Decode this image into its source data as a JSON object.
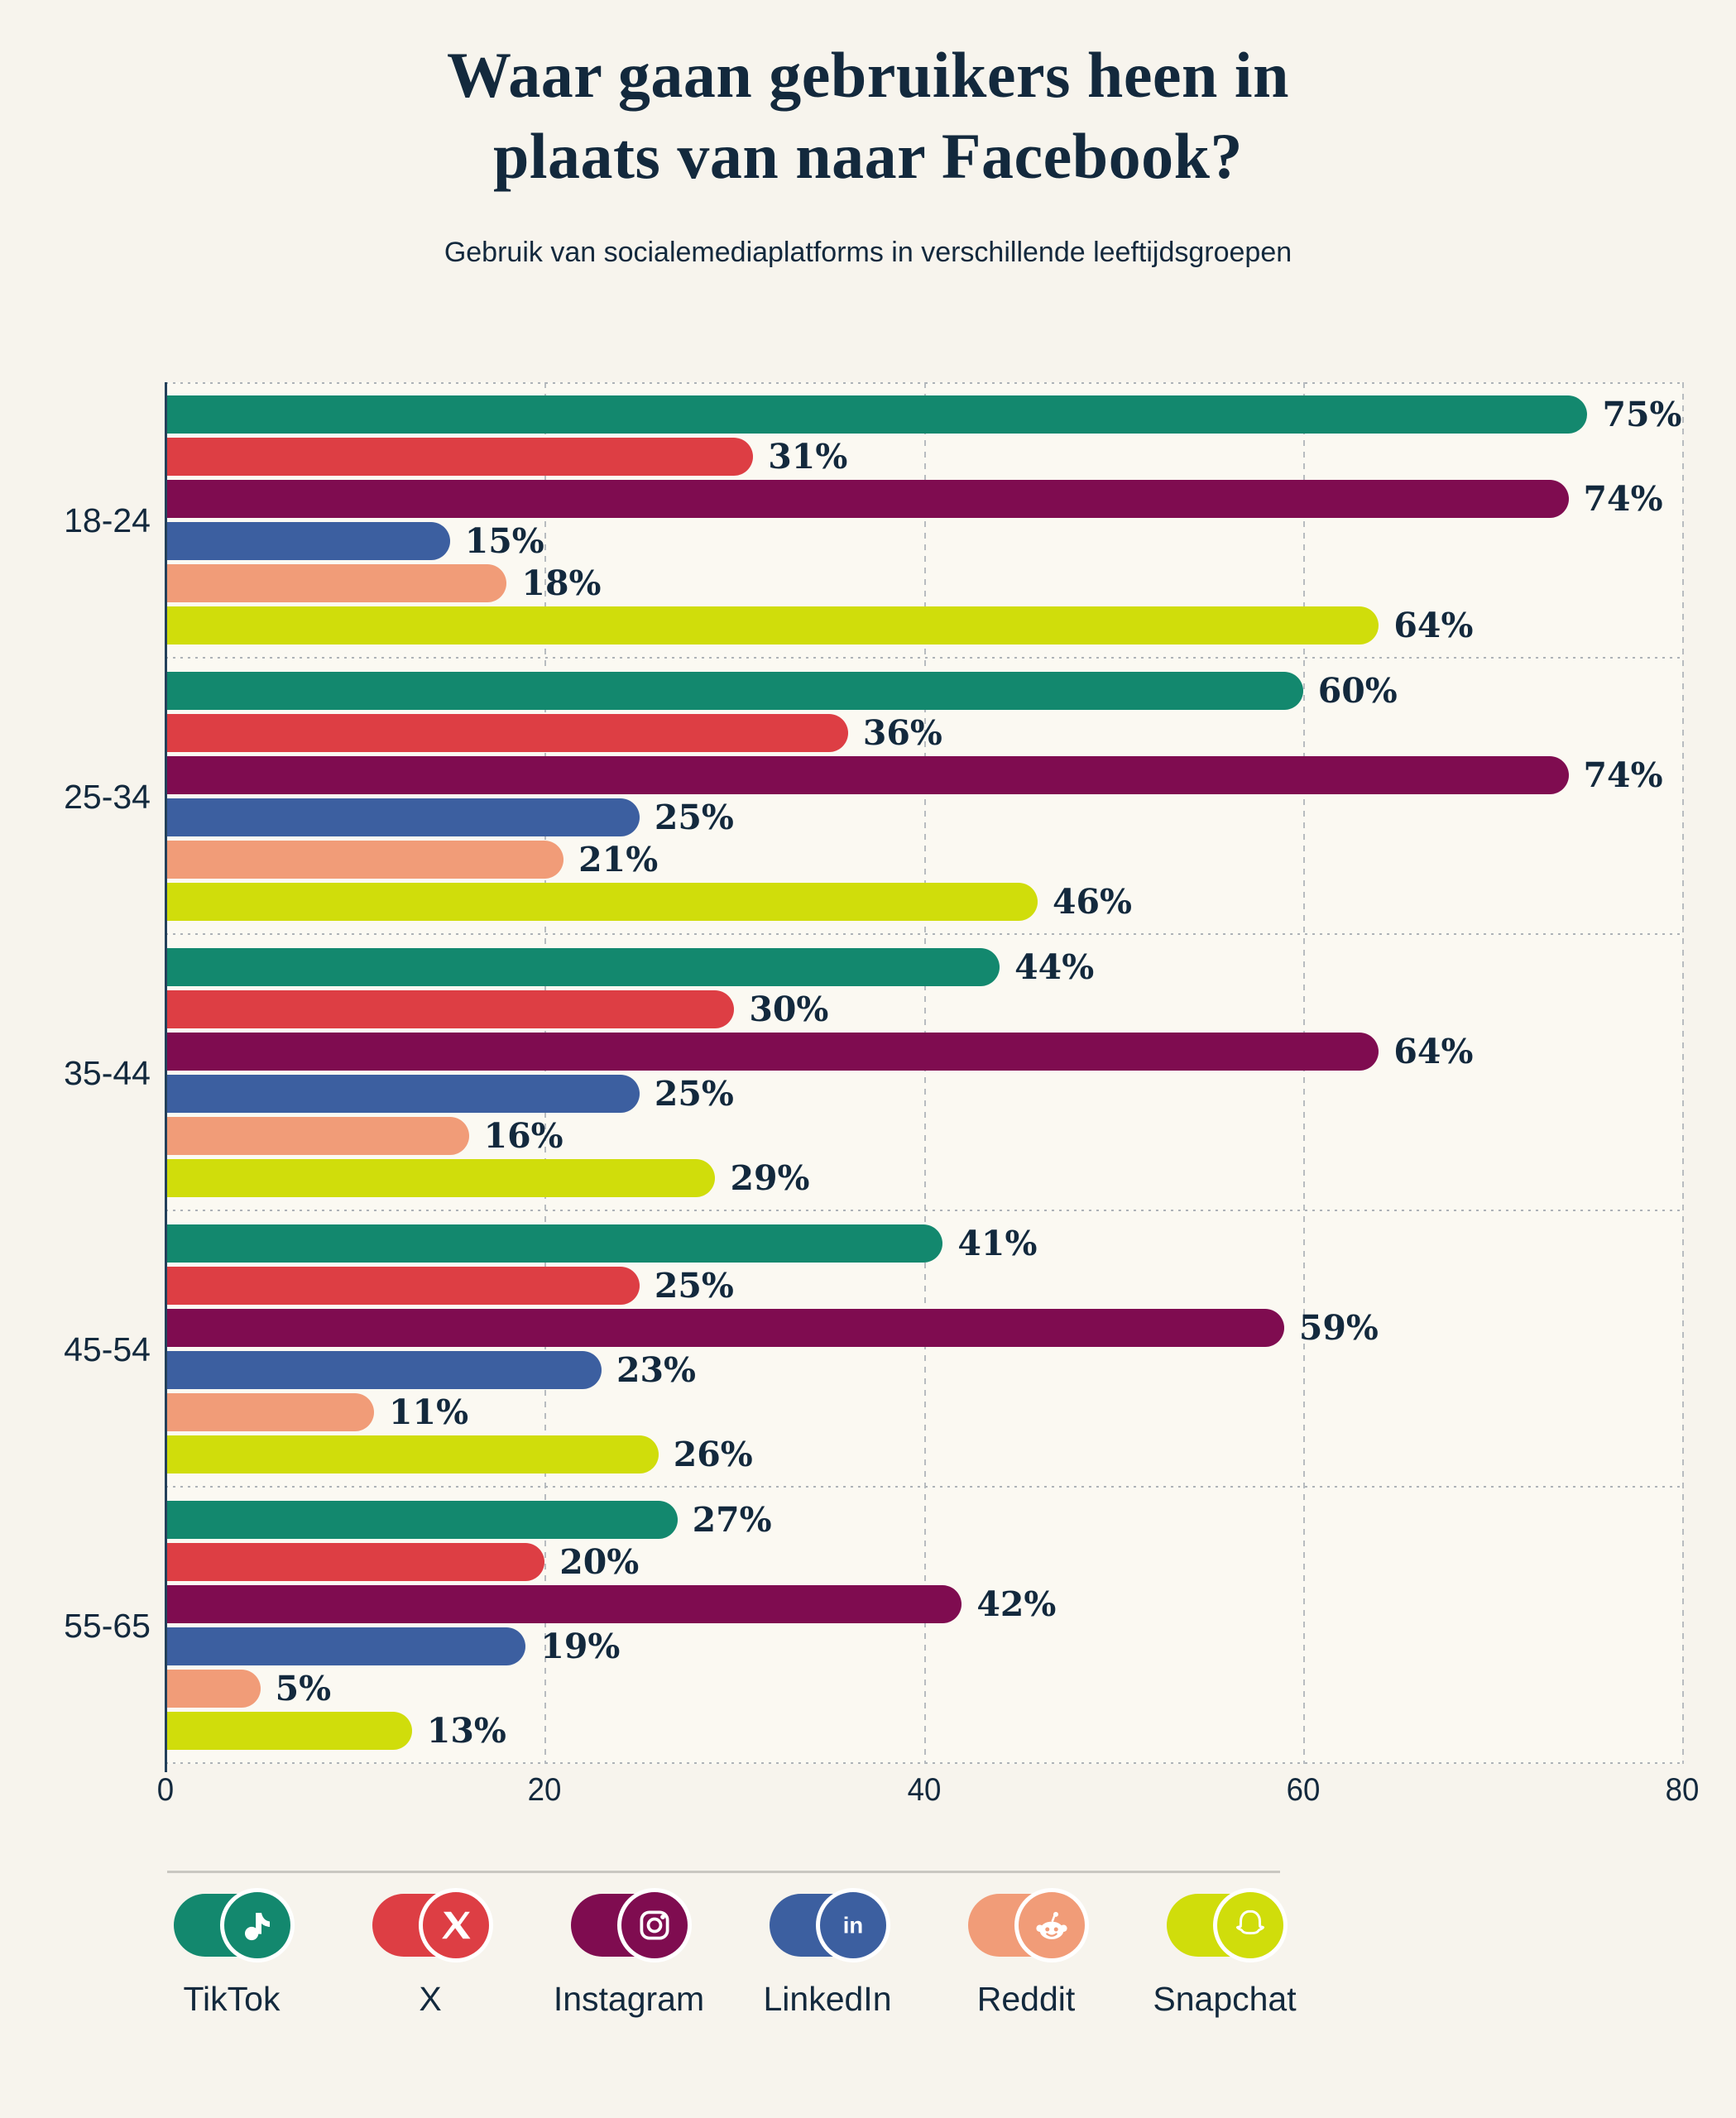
{
  "title": {
    "line1": "Waar gaan gebruikers heen in",
    "line2": "plaats van naar Facebook?",
    "full": "Waar gaan gebruikers heen in plaats van naar Facebook?"
  },
  "subtitle": "Gebruik van socialemediaplatforms in verschillende leeftijdsgroepen",
  "colors": {
    "page_background": "#F7F4ED",
    "plot_background": "#FBF9F2",
    "text_navy": "#13293D",
    "axis_line": "#23405A",
    "gridline": "#B8BCC0",
    "group_separator": "#AEB3B8",
    "legend_divider": "#C9C7C1",
    "icon_ring": "#FFFFFF"
  },
  "chart_data": {
    "type": "bar",
    "orientation": "horizontal",
    "title": "Waar gaan gebruikers heen in plaats van naar Facebook?",
    "subtitle": "Gebruik van socialemediaplatforms in verschillende leeftijdsgroepen",
    "categories": [
      "18-24",
      "25-34",
      "35-44",
      "45-54",
      "55-65"
    ],
    "series": [
      {
        "name": "TikTok",
        "color": "#13886E",
        "values": [
          75,
          60,
          44,
          41,
          27
        ]
      },
      {
        "name": "X",
        "color": "#DD3E44",
        "values": [
          31,
          36,
          30,
          25,
          20
        ]
      },
      {
        "name": "Instagram",
        "color": "#7F0C50",
        "values": [
          74,
          74,
          64,
          59,
          42
        ]
      },
      {
        "name": "LinkedIn",
        "color": "#3C5FA0",
        "values": [
          15,
          25,
          25,
          23,
          19
        ]
      },
      {
        "name": "Reddit",
        "color": "#F19C78",
        "values": [
          18,
          21,
          16,
          11,
          5
        ]
      },
      {
        "name": "Snapchat",
        "color": "#D0DD0B",
        "values": [
          64,
          46,
          29,
          26,
          13
        ]
      }
    ],
    "value_suffix": "%",
    "xlim": [
      0,
      80
    ],
    "x_ticks": [
      0,
      20,
      40,
      60,
      80
    ],
    "grid": "vertical dashed gridlines, dotted horizontal group separators",
    "legend_position": "bottom"
  },
  "legend": {
    "items": [
      {
        "label": "TikTok",
        "icon": "tiktok-icon"
      },
      {
        "label": "X",
        "icon": "x-icon"
      },
      {
        "label": "Instagram",
        "icon": "instagram-icon"
      },
      {
        "label": "LinkedIn",
        "icon": "linkedin-icon"
      },
      {
        "label": "Reddit",
        "icon": "reddit-icon"
      },
      {
        "label": "Snapchat",
        "icon": "snapchat-icon"
      }
    ]
  }
}
